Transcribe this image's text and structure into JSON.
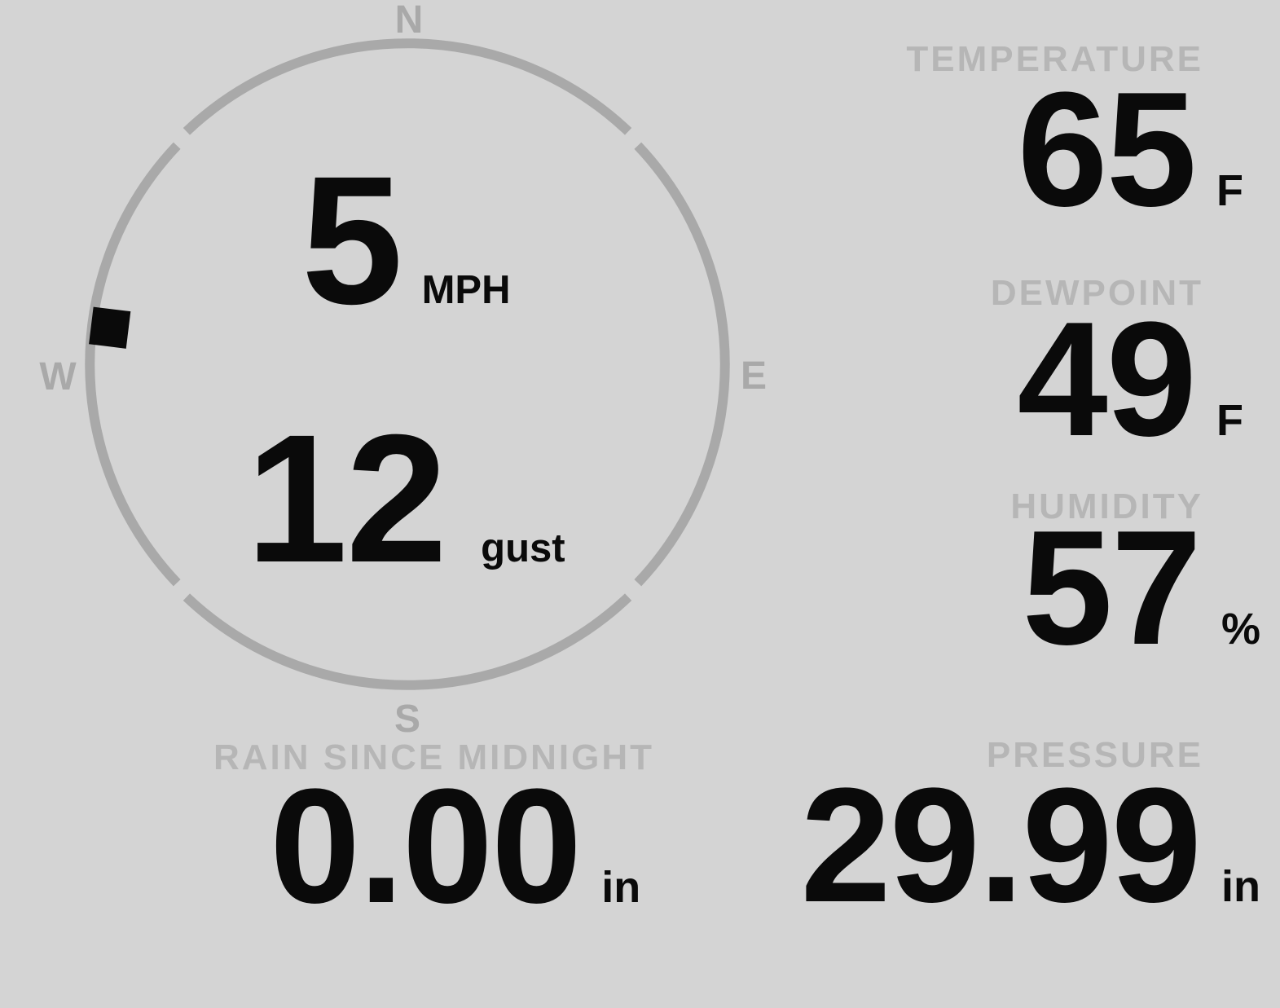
{
  "colors": {
    "background": "#d4d4d4",
    "compass_gray": "#a9a9a9",
    "label_gray": "#b6b6b6",
    "value_black": "#0a0a0a"
  },
  "compass": {
    "cardinals": {
      "north": "N",
      "east": "E",
      "south": "S",
      "west": "W"
    },
    "wind": {
      "speed": "5",
      "speed_unit": "MPH",
      "gust": "12",
      "gust_unit": "gust",
      "direction_deg": 277
    }
  },
  "metrics": {
    "temperature": {
      "label": "TEMPERATURE",
      "value": "65",
      "unit": "F"
    },
    "dewpoint": {
      "label": "DEWPOINT",
      "value": "49",
      "unit": "F"
    },
    "humidity": {
      "label": "HUMIDITY",
      "value": "57",
      "unit": "%"
    },
    "rain": {
      "label": "RAIN SINCE MIDNIGHT",
      "value": "0.00",
      "unit": "in"
    },
    "pressure": {
      "label": "PRESSURE",
      "value": "29.99",
      "unit": "in"
    }
  }
}
